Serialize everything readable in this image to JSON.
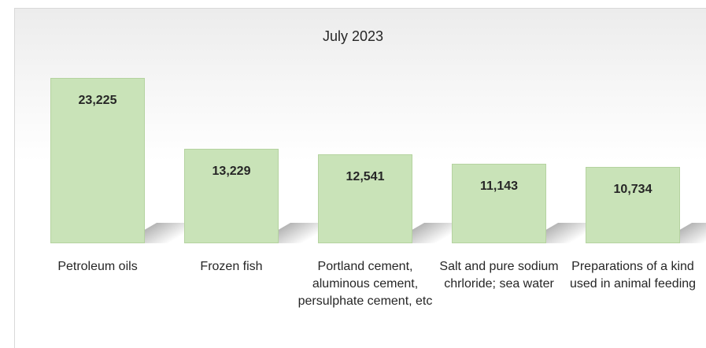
{
  "chart_data": {
    "type": "bar",
    "title": "July 2023",
    "categories": [
      "Petroleum oils",
      "Frozen fish",
      "Portland cement, aluminous cement, persulphate cement, etc",
      "Salt and pure sodium chrloride; sea water",
      "Preparations of a kind used in animal feeding"
    ],
    "values": [
      23225,
      13229,
      12541,
      11143,
      10734
    ],
    "value_labels": [
      "23,225",
      "13,229",
      "12,541",
      "11,143",
      "10,734"
    ],
    "color": "#c9e3b8"
  }
}
